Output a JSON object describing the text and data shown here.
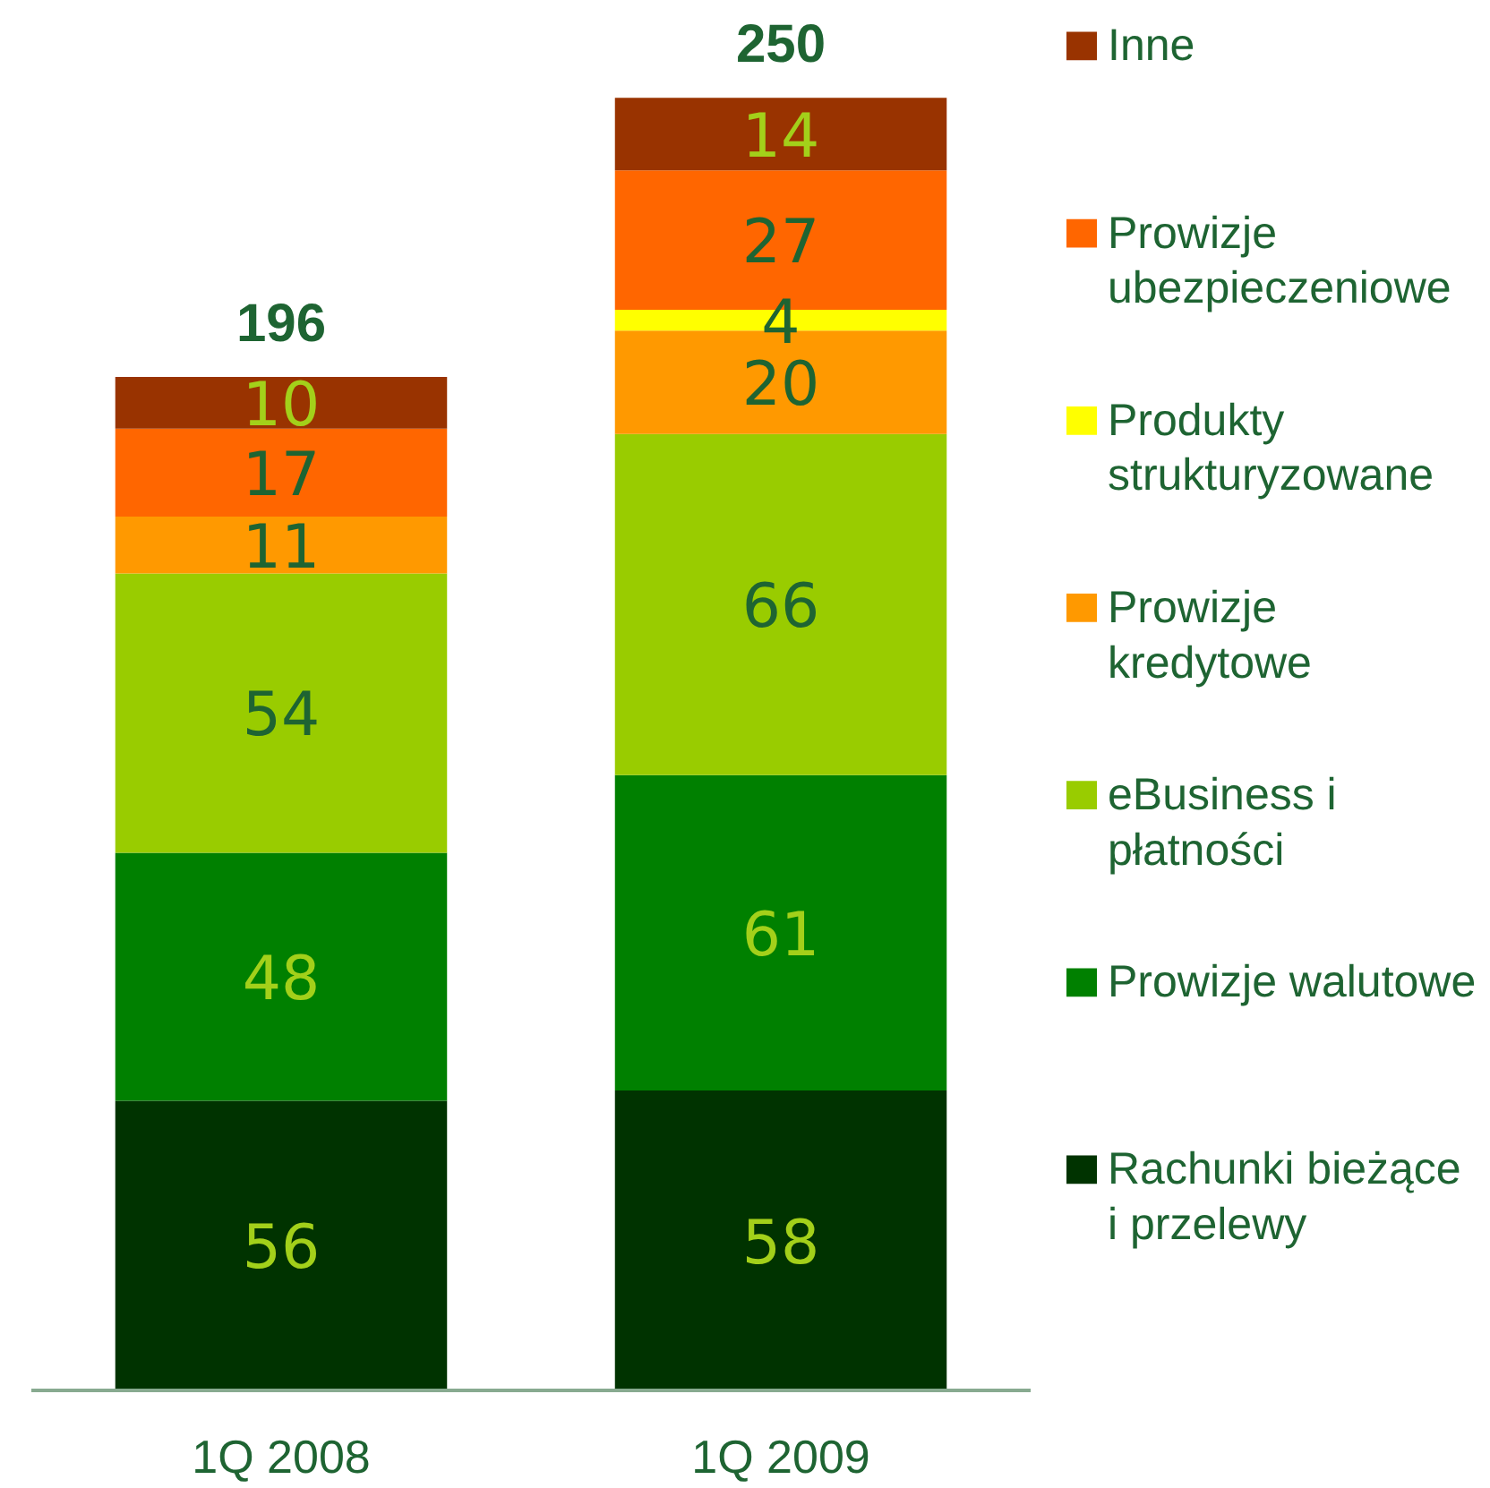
{
  "chart_data": {
    "type": "bar",
    "stacked": true,
    "data_labels": true,
    "legend": "right",
    "tick_labels": "x",
    "categories": [
      "1Q 2008",
      "1Q 2009"
    ],
    "series": [
      {
        "name": "Rachunki bieżące i przelewy",
        "color": "#003300",
        "values": [
          56,
          58
        ]
      },
      {
        "name": "Prowizje walutowe",
        "color": "#008000",
        "values": [
          48,
          61
        ]
      },
      {
        "name": "eBusiness i płatności",
        "color": "#99cc00",
        "values": [
          54,
          66
        ]
      },
      {
        "name": "Prowizje kredytowe",
        "color": "#ff9900",
        "values": [
          11,
          20
        ]
      },
      {
        "name": "Produkty strukturyzowane",
        "color": "#ffff00",
        "values": [
          null,
          4
        ]
      },
      {
        "name": "Prowizje ubezpieczeniowe",
        "color": "#ff6600",
        "values": [
          17,
          27
        ]
      },
      {
        "name": "Inne",
        "color": "#993300",
        "values": [
          10,
          14
        ]
      }
    ],
    "totals": [
      "196",
      "250"
    ]
  }
}
